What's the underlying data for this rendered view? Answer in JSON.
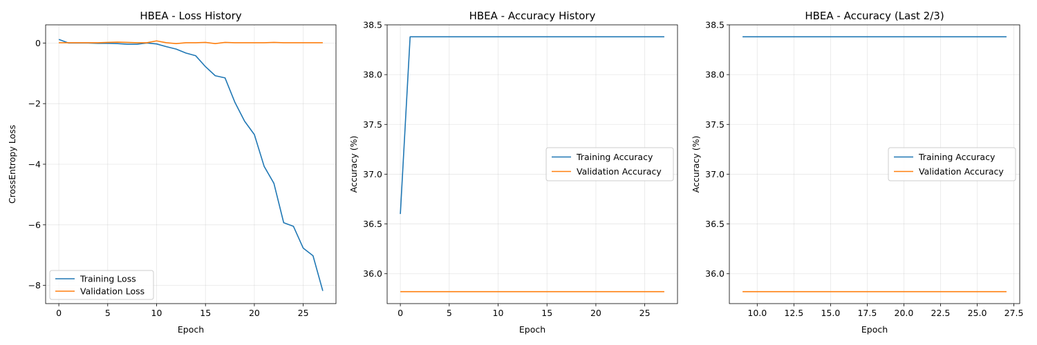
{
  "chart_data": [
    {
      "type": "line",
      "title": "HBEA - Loss History",
      "xlabel": "Epoch",
      "ylabel": "CrossEntropy Loss",
      "xlim": [
        -1.35,
        28.35
      ],
      "ylim": [
        -8.6,
        0.6
      ],
      "xticks": [
        0,
        5,
        10,
        15,
        20,
        25
      ],
      "xtick_labels": [
        "0",
        "5",
        "10",
        "15",
        "20",
        "25"
      ],
      "yticks": [
        0,
        -2,
        -4,
        -6,
        -8
      ],
      "ytick_labels": [
        "0",
        "−2",
        "−4",
        "−6",
        "−8"
      ],
      "grid": true,
      "legend_position": "lower-left",
      "series": [
        {
          "name": "Training Loss",
          "color": "#1f77b4",
          "x": [
            0,
            1,
            2,
            3,
            4,
            5,
            6,
            7,
            8,
            9,
            10,
            11,
            12,
            13,
            14,
            15,
            16,
            17,
            18,
            19,
            20,
            21,
            22,
            23,
            24,
            25,
            26,
            27
          ],
          "values": [
            0.12,
            0.0,
            0.0,
            0.0,
            -0.01,
            -0.01,
            -0.02,
            -0.04,
            -0.04,
            0.0,
            -0.03,
            -0.12,
            -0.2,
            -0.33,
            -0.42,
            -0.78,
            -1.08,
            -1.15,
            -1.95,
            -2.58,
            -3.02,
            -4.07,
            -4.63,
            -5.93,
            -6.05,
            -6.77,
            -7.02,
            -8.18
          ]
        },
        {
          "name": "Validation Loss",
          "color": "#ff7f0e",
          "x": [
            0,
            1,
            2,
            3,
            4,
            5,
            6,
            7,
            8,
            9,
            10,
            11,
            12,
            13,
            14,
            15,
            16,
            17,
            18,
            19,
            20,
            21,
            22,
            23,
            24,
            25,
            26,
            27
          ],
          "values": [
            0.01,
            0.01,
            0.01,
            0.01,
            0.01,
            0.02,
            0.03,
            0.02,
            0.01,
            0.01,
            0.07,
            0.01,
            -0.02,
            0.01,
            0.01,
            0.02,
            -0.02,
            0.02,
            0.01,
            0.01,
            0.01,
            0.01,
            0.02,
            0.01,
            0.01,
            0.01,
            0.01,
            0.01
          ]
        }
      ]
    },
    {
      "type": "line",
      "title": "HBEA - Accuracy History",
      "xlabel": "Epoch",
      "ylabel": "Accuracy (%)",
      "xlim": [
        -1.35,
        28.35
      ],
      "ylim": [
        35.7,
        38.5
      ],
      "xticks": [
        0,
        5,
        10,
        15,
        20,
        25
      ],
      "xtick_labels": [
        "0",
        "5",
        "10",
        "15",
        "20",
        "25"
      ],
      "yticks": [
        36.0,
        36.5,
        37.0,
        37.5,
        38.0,
        38.5
      ],
      "ytick_labels": [
        "36.0",
        "36.5",
        "37.0",
        "37.5",
        "38.0",
        "38.5"
      ],
      "grid": true,
      "legend_position": "center-right",
      "series": [
        {
          "name": "Training Accuracy",
          "color": "#1f77b4",
          "x": [
            0,
            1,
            2,
            3,
            4,
            5,
            6,
            7,
            8,
            9,
            10,
            11,
            12,
            13,
            14,
            15,
            16,
            17,
            18,
            19,
            20,
            21,
            22,
            23,
            24,
            25,
            26,
            27
          ],
          "values": [
            36.6,
            38.38,
            38.38,
            38.38,
            38.38,
            38.38,
            38.38,
            38.38,
            38.38,
            38.38,
            38.38,
            38.38,
            38.38,
            38.38,
            38.38,
            38.38,
            38.38,
            38.38,
            38.38,
            38.38,
            38.38,
            38.38,
            38.38,
            38.38,
            38.38,
            38.38,
            38.38,
            38.38
          ]
        },
        {
          "name": "Validation Accuracy",
          "color": "#ff7f0e",
          "x": [
            0,
            1,
            2,
            3,
            4,
            5,
            6,
            7,
            8,
            9,
            10,
            11,
            12,
            13,
            14,
            15,
            16,
            17,
            18,
            19,
            20,
            21,
            22,
            23,
            24,
            25,
            26,
            27
          ],
          "values": [
            35.82,
            35.82,
            35.82,
            35.82,
            35.82,
            35.82,
            35.82,
            35.82,
            35.82,
            35.82,
            35.82,
            35.82,
            35.82,
            35.82,
            35.82,
            35.82,
            35.82,
            35.82,
            35.82,
            35.82,
            35.82,
            35.82,
            35.82,
            35.82,
            35.82,
            35.82,
            35.82,
            35.82
          ]
        }
      ]
    },
    {
      "type": "line",
      "title": "HBEA - Accuracy (Last 2/3)",
      "xlabel": "Epoch",
      "ylabel": "Accuracy (%)",
      "xlim": [
        8.1,
        27.9
      ],
      "ylim": [
        35.7,
        38.5
      ],
      "xticks": [
        10.0,
        12.5,
        15.0,
        17.5,
        20.0,
        22.5,
        25.0,
        27.5
      ],
      "xtick_labels": [
        "10.0",
        "12.5",
        "15.0",
        "17.5",
        "20.0",
        "22.5",
        "25.0",
        "27.5"
      ],
      "yticks": [
        36.0,
        36.5,
        37.0,
        37.5,
        38.0,
        38.5
      ],
      "ytick_labels": [
        "36.0",
        "36.5",
        "37.0",
        "37.5",
        "38.0",
        "38.5"
      ],
      "grid": true,
      "legend_position": "center-right",
      "series": [
        {
          "name": "Training Accuracy",
          "color": "#1f77b4",
          "x": [
            9,
            10,
            11,
            12,
            13,
            14,
            15,
            16,
            17,
            18,
            19,
            20,
            21,
            22,
            23,
            24,
            25,
            26,
            27
          ],
          "values": [
            38.38,
            38.38,
            38.38,
            38.38,
            38.38,
            38.38,
            38.38,
            38.38,
            38.38,
            38.38,
            38.38,
            38.38,
            38.38,
            38.38,
            38.38,
            38.38,
            38.38,
            38.38,
            38.38
          ]
        },
        {
          "name": "Validation Accuracy",
          "color": "#ff7f0e",
          "x": [
            9,
            10,
            11,
            12,
            13,
            14,
            15,
            16,
            17,
            18,
            19,
            20,
            21,
            22,
            23,
            24,
            25,
            26,
            27
          ],
          "values": [
            35.82,
            35.82,
            35.82,
            35.82,
            35.82,
            35.82,
            35.82,
            35.82,
            35.82,
            35.82,
            35.82,
            35.82,
            35.82,
            35.82,
            35.82,
            35.82,
            35.82,
            35.82,
            35.82
          ]
        }
      ]
    }
  ]
}
